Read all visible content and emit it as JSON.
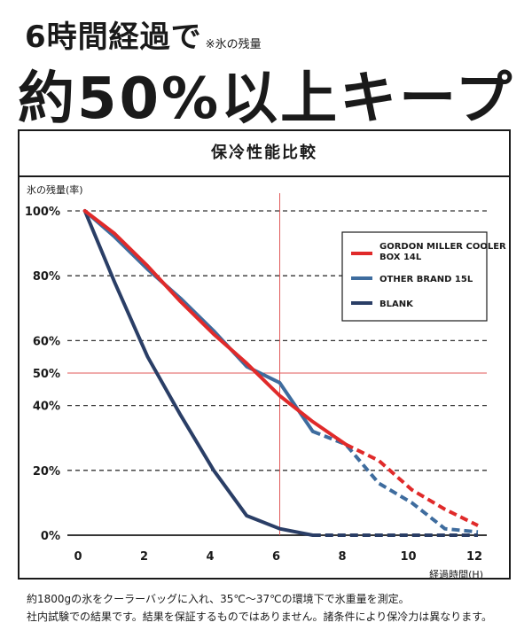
{
  "headline": {
    "line1": "6時間経過で",
    "note": "※氷の残量",
    "line2": "約50%以上キープ"
  },
  "chart_data": {
    "type": "line",
    "title": "保冷性能比較",
    "ylabel": "氷の残量(率)",
    "xlabel": "経過時間(H)",
    "xlim": [
      0,
      12
    ],
    "ylim": [
      0,
      100
    ],
    "x_ticks": [
      "0",
      "2",
      "4",
      "6",
      "8",
      "10",
      "12"
    ],
    "y_ticks": [
      {
        "label": "100%",
        "value": 100
      },
      {
        "label": "80%",
        "value": 80
      },
      {
        "label": "60%",
        "value": 60
      },
      {
        "label": "50%",
        "value": 50
      },
      {
        "label": "40%",
        "value": 40
      },
      {
        "label": "20%",
        "value": 20
      },
      {
        "label": "0%",
        "value": 0
      }
    ],
    "reference_lines": {
      "x": 6,
      "y": 50,
      "color": "#e05a5a"
    },
    "legend_position": "top-right",
    "series": [
      {
        "name": "GORDON MILLER COOLER BOX 14L",
        "color": "#e02a2a",
        "solid_until_x": 8,
        "x": [
          0.1,
          1,
          2,
          3,
          4,
          5,
          6,
          7,
          8,
          9,
          10,
          11,
          12
        ],
        "y": [
          100,
          93,
          83,
          72,
          62,
          53,
          43,
          35,
          28,
          23,
          14,
          8,
          3
        ]
      },
      {
        "name": "OTHER BRAND 15L",
        "color": "#3e6c9e",
        "solid_until_x": 7.5,
        "x": [
          0.1,
          1,
          2,
          3,
          4,
          5,
          6,
          7,
          8,
          9,
          10,
          11,
          12
        ],
        "y": [
          100,
          92,
          82,
          73,
          63,
          52,
          47,
          32,
          28,
          16,
          10,
          2,
          1
        ]
      },
      {
        "name": "BLANK",
        "color": "#2a3e66",
        "solid_until_x": 7,
        "x": [
          0.1,
          1,
          2,
          3,
          4,
          5,
          6,
          7,
          8,
          9,
          10,
          11,
          12
        ],
        "y": [
          100,
          78,
          55,
          37,
          20,
          6,
          2,
          0,
          0,
          0,
          0,
          0,
          0
        ]
      }
    ]
  },
  "footnote": {
    "line1": "約1800gの氷をクーラーバッグに入れ、35℃〜37℃の環境下で氷重量を測定。",
    "line2": "社内試験での結果です。結果を保証するものではありません。諸条件により保冷力は異なります。"
  }
}
